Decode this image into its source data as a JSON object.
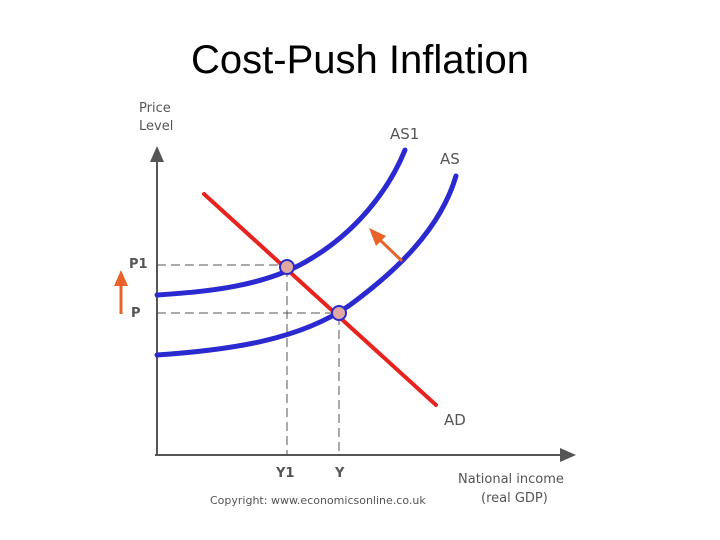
{
  "title": "Cost-Push Inflation",
  "diagram": {
    "y_axis_label_line1": "Price",
    "y_axis_label_line2": "Level",
    "x_axis_label_line1": "National income",
    "x_axis_label_line2": "(real GDP)",
    "curves": {
      "as1": "AS1",
      "as": "AS",
      "ad": "AD"
    },
    "price_levels": {
      "p1": "P1",
      "p": "P"
    },
    "income_levels": {
      "y1": "Y1",
      "y": "Y"
    },
    "copyright": "Copyright: www.economicsonline.co.uk",
    "colors": {
      "supply_curves": "#2a2ad0",
      "demand_curve": "#e8231e",
      "arrow": "#e8622a",
      "equilibrium_point": "#e2a9a0",
      "axes": "#555555"
    }
  }
}
